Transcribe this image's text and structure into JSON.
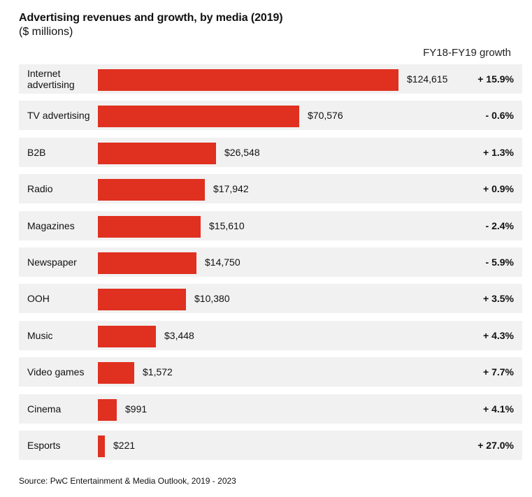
{
  "chart_data": {
    "type": "bar",
    "orientation": "horizontal",
    "title": "Advertising revenues and growth, by media (2019)",
    "subtitle": "($ millions)",
    "growth_header": "FY18-FY19 growth",
    "source": "Source: PwC Entertainment & Media Outlook, 2019 - 2023",
    "xlabel": "",
    "ylabel": "",
    "bar_color": "#e03020",
    "row_background": "#f1f1f1",
    "categories": [
      "Internet advertising",
      "TV advertising",
      "B2B",
      "Radio",
      "Magazines",
      "Newspaper",
      "OOH",
      "Music",
      "Video games",
      "Cinema",
      "Esports"
    ],
    "values": [
      124615,
      70576,
      26548,
      17942,
      15610,
      14750,
      10380,
      3448,
      1572,
      991,
      221
    ],
    "value_labels": [
      "$124,615",
      "$70,576",
      "$26,548",
      "$17,942",
      "$15,610",
      "$14,750",
      "$10,380",
      "$3,448",
      "$1,572",
      "$991",
      "$221"
    ],
    "growth": [
      15.9,
      -0.6,
      1.3,
      0.9,
      -2.4,
      -5.9,
      3.5,
      4.3,
      7.7,
      4.1,
      27.0
    ],
    "growth_labels": [
      "+ 15.9%",
      "- 0.6%",
      "+ 1.3%",
      "+ 0.9%",
      "- 2.4%",
      "- 5.9%",
      "+ 3.5%",
      "+ 4.3%",
      "+ 7.7%",
      "+ 4.1%",
      "+ 27.0%"
    ],
    "legend": "none",
    "grid": false
  }
}
